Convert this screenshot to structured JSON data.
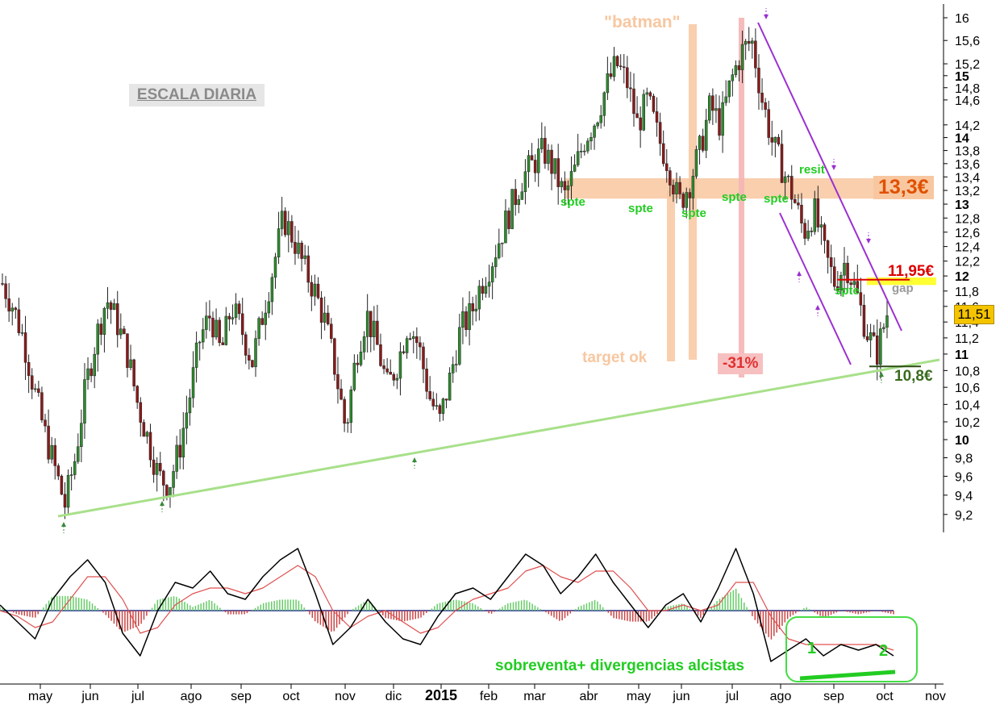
{
  "scale_label": "ESCALA DIARIA",
  "annotations": {
    "batman": "\"batman\"",
    "target_ok": "target ok",
    "drop": "-31%",
    "resit": "resit",
    "spte": "spte",
    "gap": "gap",
    "level_133": "13,3€",
    "level_1195": "11,95€",
    "level_108": "10,8€",
    "osc_1": "1",
    "osc_2": "2",
    "oscillator_note": "sobreventa+ divergencias alcistas"
  },
  "last_price": "11,51",
  "colors": {
    "bull": "#2e8b2e",
    "bear": "#8b1a1a",
    "orange_band": "#f8c7a0",
    "pink_band": "#f5b5b5",
    "trendline": "#a8e08a",
    "channel": "#9b30d0",
    "annotation_green": "#22cc22",
    "annotation_orange": "#e05000",
    "annotation_red": "#dd0000",
    "gap_yellow": "#ffff33",
    "macd": "#000000",
    "signal": "#e05050",
    "histogram_pos": "#66cc66",
    "histogram_neg": "#cc4444"
  },
  "chart_data": {
    "type": "candlestick",
    "price_scale": "log",
    "ylim": [
      9.0,
      16.1
    ],
    "y_ticks": [
      "16",
      "15,6",
      "15,2",
      "15",
      "14,8",
      "14,6",
      "14,2",
      "14",
      "13,8",
      "13,6",
      "13,4",
      "13,2",
      "13",
      "12,8",
      "12,6",
      "12,4",
      "12,2",
      "12",
      "11,8",
      "11,6",
      "11,4",
      "11,2",
      "11",
      "10,8",
      "10,6",
      "10,4",
      "10,2",
      "10",
      "9,8",
      "9,6",
      "9,4",
      "9,2"
    ],
    "y_ticks_bold": [
      "15",
      "14",
      "13",
      "12",
      "11",
      "10"
    ],
    "x_ticks": [
      "may",
      "jun",
      "jul",
      "ago",
      "sep",
      "oct",
      "nov",
      "dic",
      "2015",
      "feb",
      "mar",
      "abr",
      "may",
      "jun",
      "jul",
      "ago",
      "sep",
      "oct",
      "nov"
    ],
    "x_ticks_bold": [
      "2015"
    ],
    "close_path": [
      11.9,
      11.6,
      11.2,
      10.6,
      10.1,
      9.7,
      9.3,
      9.8,
      10.6,
      11.2,
      11.7,
      11.4,
      11.0,
      10.4,
      10.0,
      9.6,
      9.5,
      9.9,
      10.5,
      11.2,
      11.5,
      11.0,
      11.6,
      11.3,
      10.9,
      11.5,
      12.1,
      12.8,
      12.5,
      12.1,
      11.8,
      11.4,
      10.8,
      10.1,
      11.0,
      11.5,
      11.1,
      10.6,
      10.9,
      11.4,
      11.1,
      10.5,
      10.2,
      10.7,
      11.3,
      11.5,
      11.9,
      12.2,
      12.6,
      13.0,
      13.4,
      13.6,
      13.8,
      13.5,
      13.1,
      13.5,
      14.0,
      14.3,
      14.8,
      15.2,
      14.9,
      14.2,
      14.6,
      14.0,
      13.6,
      13.0,
      13.3,
      13.8,
      14.5,
      14.2,
      14.9,
      15.4,
      15.6,
      14.6,
      13.9,
      13.5,
      13.1,
      12.6,
      12.9,
      12.3,
      11.9,
      12.2,
      11.8,
      11.3,
      11.0,
      11.51
    ],
    "oscillator": {
      "macd_path": [
        0.1,
        -0.2,
        -0.5,
        0.2,
        0.6,
        0.9,
        0.5,
        -0.4,
        -0.8,
        0.0,
        0.5,
        0.4,
        0.7,
        0.3,
        0.2,
        0.6,
        0.9,
        1.1,
        0.3,
        -0.6,
        -0.3,
        0.2,
        -0.2,
        -0.5,
        -0.6,
        -0.1,
        0.3,
        0.4,
        0.2,
        0.6,
        1.0,
        0.8,
        0.3,
        0.6,
        1.0,
        0.5,
        0.1,
        -0.3,
        0.1,
        0.3,
        -0.2,
        0.4,
        1.1,
        0.3,
        -0.9,
        -0.7,
        -0.5,
        -0.8,
        -0.6,
        -0.7,
        -0.6,
        -0.8
      ],
      "signal_path": [
        0.0,
        -0.1,
        -0.3,
        -0.2,
        0.2,
        0.6,
        0.6,
        0.2,
        -0.4,
        -0.3,
        0.1,
        0.3,
        0.4,
        0.4,
        0.3,
        0.4,
        0.6,
        0.8,
        0.6,
        0.0,
        -0.3,
        -0.1,
        0.0,
        -0.2,
        -0.4,
        -0.3,
        0.0,
        0.2,
        0.3,
        0.4,
        0.7,
        0.8,
        0.6,
        0.5,
        0.7,
        0.7,
        0.4,
        0.0,
        0.0,
        0.1,
        0.0,
        0.1,
        0.5,
        0.5,
        -0.1,
        -0.5,
        -0.6,
        -0.6,
        -0.6,
        -0.6,
        -0.6,
        -0.7
      ]
    }
  }
}
